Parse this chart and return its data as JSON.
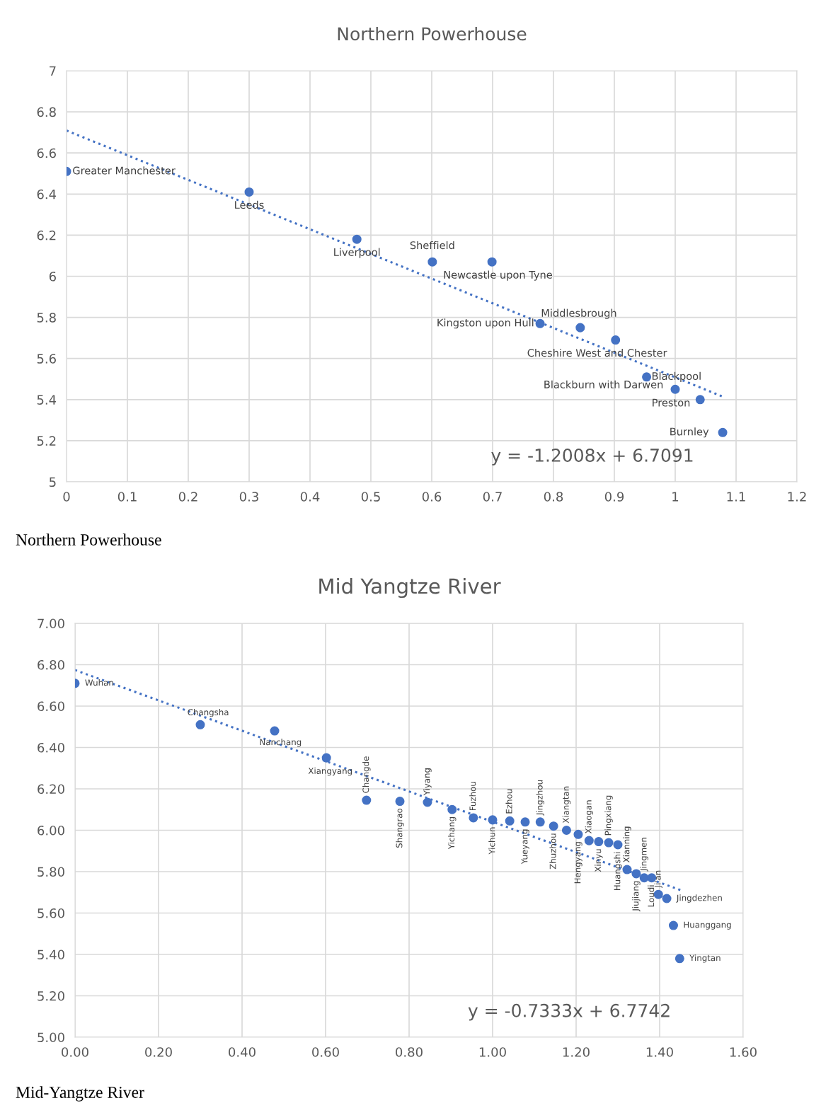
{
  "chart_data": [
    {
      "type": "scatter",
      "title": "Northern Powerhouse",
      "annotations": [
        "y = -1.2008x + 6.7091",
        "Northern Powerhouse"
      ],
      "xlim": [
        0,
        1.2
      ],
      "xticks": [
        0,
        0.1,
        0.2,
        0.3,
        0.4,
        0.5,
        0.6,
        0.7,
        0.8,
        0.9,
        1,
        1.1,
        1.2
      ],
      "ylim": [
        5,
        7
      ],
      "yticks": [
        5,
        5.2,
        5.4,
        5.6,
        5.8,
        6,
        6.2,
        6.4,
        6.6,
        6.8,
        7
      ],
      "grid": true,
      "legend": false,
      "series": [
        {
          "marker": "circle",
          "color": "#4472c4",
          "x": [
            0,
            0.3,
            0.477,
            0.601,
            0.699,
            0.778,
            0.844,
            0.902,
            0.953,
            1.0,
            1.041,
            1.078
          ],
          "values": [
            6.51,
            6.41,
            6.18,
            6.07,
            6.07,
            5.77,
            5.75,
            5.69,
            5.51,
            5.45,
            5.4,
            5.24
          ],
          "value_labels": [
            "Greater Manchester",
            "Leeds",
            "Liverpool",
            "Sheffield",
            "Newcastle upon Tyne",
            "Kingston upon Hull",
            "Middlesbrough",
            "Cheshire West and Chester",
            "Blackpool",
            "Blackburn with Darwen",
            "Preston",
            "Burnley"
          ]
        },
        {
          "type": "line",
          "color": "#4472c4",
          "line_style": "dotted",
          "x": [
            0,
            1.08
          ],
          "values": [
            6.7091,
            5.4122
          ]
        }
      ]
    },
    {
      "type": "scatter",
      "title": "Mid Yangtze River",
      "annotations": [
        "y = -0.7333x + 6.7742",
        "Mid-Yangtze River"
      ],
      "xlim": [
        0,
        1.6
      ],
      "xticks": [
        {
          "value": 0,
          "label": "0.00"
        },
        {
          "value": 0.2,
          "label": "0.20"
        },
        {
          "value": 0.4,
          "label": "0.40"
        },
        {
          "value": 0.6,
          "label": "0.60"
        },
        {
          "value": 0.8,
          "label": "0.80"
        },
        {
          "value": 1,
          "label": "1.00"
        },
        {
          "value": 1.2,
          "label": "1.20"
        },
        {
          "value": 1.4,
          "label": "1.40"
        },
        {
          "value": 1.6,
          "label": "1.60"
        }
      ],
      "ylim": [
        5,
        7
      ],
      "yticks": [
        {
          "value": 5,
          "label": "5.00"
        },
        {
          "value": 5.2,
          "label": "5.20"
        },
        {
          "value": 5.4,
          "label": "5.40"
        },
        {
          "value": 5.6,
          "label": "5.60"
        },
        {
          "value": 5.8,
          "label": "5.80"
        },
        {
          "value": 6,
          "label": "6.00"
        },
        {
          "value": 6.2,
          "label": "6.20"
        },
        {
          "value": 6.4,
          "label": "6.40"
        },
        {
          "value": 6.6,
          "label": "6.60"
        },
        {
          "value": 6.8,
          "label": "6.80"
        },
        {
          "value": 7,
          "label": "7.00"
        }
      ],
      "grid": true,
      "legend": false,
      "series": [
        {
          "marker": "circle",
          "color": "#4472c4",
          "x": [
            0,
            0.3,
            0.478,
            0.602,
            0.698,
            0.778,
            0.844,
            0.903,
            0.954,
            1.0,
            1.041,
            1.078,
            1.114,
            1.146,
            1.177,
            1.205,
            1.231,
            1.254,
            1.278,
            1.3,
            1.322,
            1.344,
            1.363,
            1.381,
            1.397,
            1.417,
            1.433,
            1.448
          ],
          "values": [
            6.71,
            6.51,
            6.48,
            6.35,
            6.145,
            6.14,
            6.135,
            6.1,
            6.06,
            6.05,
            6.045,
            6.04,
            6.04,
            6.02,
            6.0,
            5.98,
            5.95,
            5.945,
            5.94,
            5.93,
            5.81,
            5.79,
            5.77,
            5.77,
            5.69,
            5.67,
            5.54,
            5.38
          ],
          "value_labels": [
            "Wuhan",
            "Changsha",
            "Nanchang",
            "Xiangyang",
            "Changde",
            "Shangrao",
            "Yiyang",
            "Yichang",
            "Fuzhou",
            "Yichun",
            "Ezhou",
            "Yueyang",
            "Jingzhou",
            "Zhuzhou",
            "Xiangtan",
            "Hengyang",
            "Xiaogan",
            "Xinyu",
            "Pingxiang",
            "Huangshi",
            "Xianning",
            "Jiujiang",
            "Jingmen",
            "Loudi",
            "Ji'an",
            "Jingdezhen",
            "Huanggang",
            "Yingtan"
          ]
        },
        {
          "type": "line",
          "color": "#4472c4",
          "line_style": "dotted",
          "x": [
            0,
            1.45
          ],
          "values": [
            6.7742,
            5.7109
          ]
        }
      ]
    }
  ]
}
